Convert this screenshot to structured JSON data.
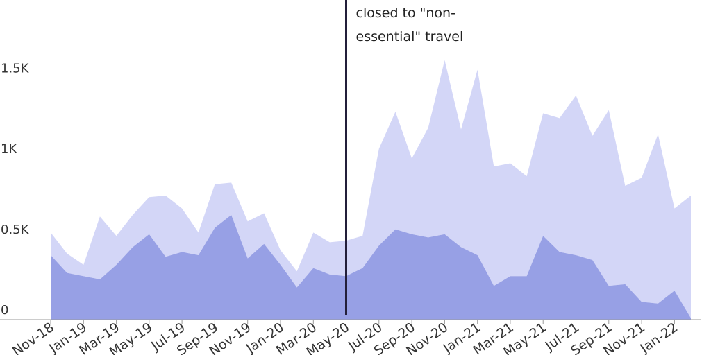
{
  "chart_data": {
    "type": "area",
    "stacked": true,
    "title": "",
    "xlabel": "",
    "ylabel": "",
    "ylim": [
      0,
      1800
    ],
    "yticks": [
      {
        "value": 0,
        "label": "0"
      },
      {
        "value": 500,
        "label": "0.5K"
      },
      {
        "value": 1000,
        "label": "1K"
      },
      {
        "value": 1500,
        "label": "1.5K"
      }
    ],
    "x": [
      "Nov-18",
      "Dec-18",
      "Jan-19",
      "Feb-19",
      "Mar-19",
      "Apr-19",
      "May-19",
      "Jun-19",
      "Jul-19",
      "Aug-19",
      "Sep-19",
      "Oct-19",
      "Nov-19",
      "Dec-19",
      "Jan-20",
      "Feb-20",
      "Mar-20",
      "Apr-20",
      "May-20",
      "Jun-20",
      "Jul-20",
      "Aug-20",
      "Sep-20",
      "Oct-20",
      "Nov-20",
      "Dec-20",
      "Jan-21",
      "Feb-21",
      "Mar-21",
      "Apr-21",
      "May-21",
      "Jun-21",
      "Jul-21",
      "Aug-21",
      "Sep-21",
      "Oct-21",
      "Nov-21",
      "Dec-21",
      "Jan-22",
      "Feb-22"
    ],
    "xtick_labels": [
      {
        "index": 0,
        "label": "Nov-18"
      },
      {
        "index": 2,
        "label": "Jan-19"
      },
      {
        "index": 4,
        "label": "Mar-19"
      },
      {
        "index": 6,
        "label": "May-19"
      },
      {
        "index": 8,
        "label": "Jul-19"
      },
      {
        "index": 10,
        "label": "Sep-19"
      },
      {
        "index": 12,
        "label": "Nov-19"
      },
      {
        "index": 14,
        "label": "Jan-20"
      },
      {
        "index": 16,
        "label": "Mar-20"
      },
      {
        "index": 18,
        "label": "May-20"
      },
      {
        "index": 20,
        "label": "Jul-20"
      },
      {
        "index": 22,
        "label": "Sep-20"
      },
      {
        "index": 24,
        "label": "Nov-20"
      },
      {
        "index": 26,
        "label": "Jan-21"
      },
      {
        "index": 28,
        "label": "Mar-21"
      },
      {
        "index": 30,
        "label": "May-21"
      },
      {
        "index": 32,
        "label": "Jul-21"
      },
      {
        "index": 34,
        "label": "Sep-21"
      },
      {
        "index": 36,
        "label": "Nov-21"
      },
      {
        "index": 38,
        "label": "Jan-22"
      }
    ],
    "series": [
      {
        "color": "#97a0e5",
        "values": [
          400,
          290,
          270,
          250,
          340,
          450,
          530,
          390,
          420,
          400,
          570,
          650,
          380,
          470,
          340,
          200,
          320,
          280,
          270,
          320,
          460,
          560,
          530,
          510,
          530,
          450,
          400,
          210,
          270,
          270,
          520,
          420,
          400,
          370,
          210,
          220,
          110,
          100,
          180,
          10
        ]
      },
      {
        "color": "#d3d6f7",
        "values": [
          140,
          120,
          70,
          390,
          180,
          200,
          230,
          380,
          270,
          140,
          270,
          200,
          230,
          190,
          90,
          100,
          220,
          200,
          220,
          200,
          600,
          730,
          470,
          680,
          1080,
          730,
          1150,
          740,
          700,
          620,
          760,
          830,
          990,
          770,
          1090,
          610,
          770,
          1050,
          510,
          760
        ]
      }
    ],
    "annotations": [
      {
        "type": "vline",
        "x": "May-20",
        "color": "#231f3a",
        "lines": [
          "closed to \"non-",
          "essential\" travel"
        ]
      }
    ],
    "grid": false,
    "legend": "none"
  }
}
